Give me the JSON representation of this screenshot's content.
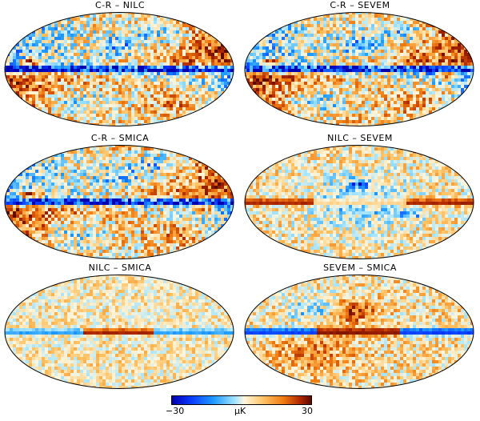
{
  "panels": [
    {
      "title": "C-R – NILC",
      "variant": "cr"
    },
    {
      "title": "C-R – SEVEM",
      "variant": "cr"
    },
    {
      "title": "C-R – SMICA",
      "variant": "cr"
    },
    {
      "title": "NILC – SEVEM",
      "variant": "ns"
    },
    {
      "title": "NILC – SMICA",
      "variant": "nm"
    },
    {
      "title": "SEVEM – SMICA",
      "variant": "sm"
    }
  ],
  "colorbar": {
    "min_label": "−30",
    "max_label": "30",
    "unit_label": "µK",
    "colors": [
      "#0000b0",
      "#0a3cff",
      "#1e9bff",
      "#9fe3ff",
      "#fff6dc",
      "#ffc060",
      "#f07a10",
      "#b02800",
      "#5a0800"
    ]
  }
}
